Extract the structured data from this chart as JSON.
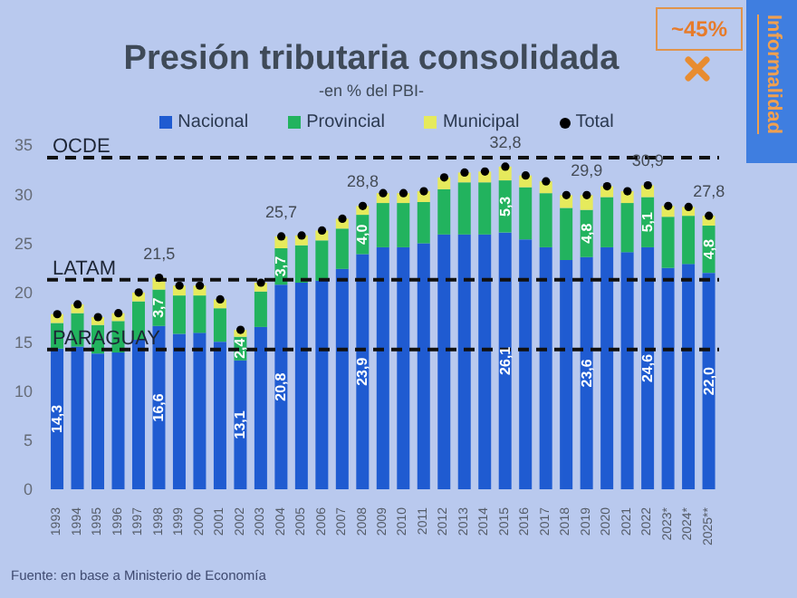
{
  "chart_data": {
    "type": "bar",
    "title": "Presión tributaria consolidada",
    "subtitle": "-en % del PBI-",
    "stacked": true,
    "legend": "top",
    "grid": false,
    "categories": [
      "1993",
      "1994",
      "1995",
      "1996",
      "1997",
      "1998",
      "1999",
      "2000",
      "2001",
      "2002",
      "2003",
      "2004",
      "2005",
      "2006",
      "2007",
      "2008",
      "2009",
      "2010",
      "2011",
      "2012",
      "2013",
      "2014",
      "2015",
      "2016",
      "2017",
      "2018",
      "2019",
      "2020",
      "2021",
      "2022",
      "2023*",
      "2024*",
      "2025**"
    ],
    "series": [
      {
        "name": "Nacional",
        "color": "#1f5bd1",
        "values": [
          14.3,
          14.5,
          13.8,
          13.9,
          15.2,
          16.6,
          15.8,
          15.9,
          15.0,
          13.1,
          16.5,
          20.8,
          21.0,
          21.2,
          22.4,
          23.9,
          24.6,
          24.6,
          25.0,
          25.9,
          25.9,
          25.9,
          26.1,
          25.4,
          24.6,
          23.3,
          23.6,
          24.6,
          24.1,
          24.6,
          22.5,
          22.9,
          22.0
        ],
        "value_labels": [
          "14,3",
          null,
          null,
          null,
          null,
          "16,6",
          null,
          null,
          null,
          "13,1",
          null,
          "20,8",
          null,
          null,
          null,
          "23,9",
          null,
          null,
          null,
          null,
          null,
          null,
          "26,1",
          null,
          null,
          null,
          "23,6",
          null,
          null,
          "24,6",
          null,
          null,
          "22,0"
        ]
      },
      {
        "name": "Provincial",
        "color": "#22b35e",
        "values": [
          2.6,
          3.4,
          2.9,
          3.2,
          3.9,
          3.7,
          3.9,
          3.8,
          3.4,
          2.4,
          3.6,
          3.7,
          3.8,
          4.1,
          4.1,
          4.0,
          4.5,
          4.5,
          4.2,
          4.6,
          5.3,
          5.3,
          5.3,
          5.3,
          5.5,
          5.3,
          4.8,
          5.1,
          5.0,
          5.1,
          5.2,
          4.9,
          4.8
        ],
        "value_labels": [
          null,
          null,
          null,
          null,
          null,
          "3,7",
          null,
          null,
          null,
          "2,4",
          null,
          "3,7",
          null,
          null,
          null,
          "4,0",
          null,
          null,
          null,
          null,
          null,
          null,
          "5,3",
          null,
          null,
          null,
          "4,8",
          null,
          null,
          "5,1",
          null,
          null,
          "4,8"
        ]
      },
      {
        "name": "Municipal",
        "color": "#e6ea5c",
        "values": [
          0.9,
          0.9,
          0.8,
          0.8,
          0.9,
          1.2,
          1.0,
          1.0,
          0.9,
          0.7,
          0.9,
          1.2,
          1.0,
          1.0,
          1.0,
          0.9,
          1.0,
          1.0,
          1.1,
          1.2,
          1.0,
          1.1,
          1.4,
          1.2,
          1.2,
          1.3,
          1.5,
          1.1,
          1.2,
          1.2,
          1.1,
          0.9,
          1.0
        ]
      },
      {
        "name": "Total",
        "type": "scatter",
        "marker": "circle",
        "color": "#000000",
        "values": [
          17.8,
          18.8,
          17.5,
          17.9,
          20.0,
          21.5,
          20.7,
          20.7,
          19.3,
          16.2,
          21.0,
          25.7,
          25.8,
          26.3,
          27.5,
          28.8,
          30.1,
          30.1,
          30.3,
          31.7,
          32.2,
          32.3,
          32.8,
          31.9,
          31.3,
          29.9,
          29.9,
          30.8,
          30.3,
          30.9,
          28.8,
          28.7,
          27.8
        ],
        "value_labels": [
          null,
          null,
          null,
          null,
          null,
          "21,5",
          null,
          null,
          null,
          null,
          null,
          "25,7",
          null,
          null,
          null,
          "28,8",
          null,
          null,
          null,
          null,
          null,
          null,
          "32,8",
          null,
          null,
          null,
          "29,9",
          null,
          null,
          "30,9",
          null,
          null,
          "27,8"
        ]
      }
    ],
    "ylim": [
      0,
      35
    ],
    "yticks": [
      0,
      5,
      10,
      15,
      20,
      25,
      30,
      35
    ],
    "ref_lines": [
      {
        "axis": "y",
        "value": 33.7,
        "label": "OCDE",
        "color": "#111111",
        "line_style": "dashed"
      },
      {
        "axis": "y",
        "value": 21.3,
        "label": "LATAM",
        "color": "#111111",
        "line_style": "dashed"
      },
      {
        "axis": "y",
        "value": 14.2,
        "label": "PARAGUAY",
        "color": "#111111",
        "line_style": "dashed"
      }
    ],
    "annotations": [
      "Fuente: en base a Ministerio de Economía",
      "~45%",
      "Informalidad"
    ]
  }
}
